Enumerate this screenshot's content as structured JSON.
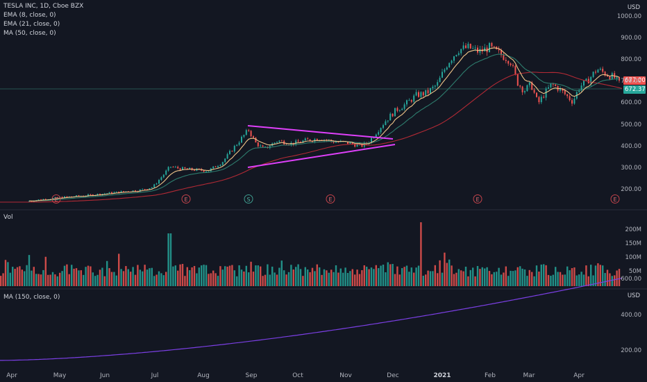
{
  "header": {
    "symbol_line": "TESLA INC, 1D, Cboe BZX",
    "indicators": [
      "EMA (8, close, 0)",
      "EMA (21, close, 0)",
      "MA (50, close, 0)"
    ]
  },
  "volume_pane": {
    "title": "Vol"
  },
  "ma_pane": {
    "title": "MA (150, close, 0)"
  },
  "currency": "USD",
  "price_tags": {
    "last": "677.00",
    "ema": "672.37"
  },
  "colors": {
    "background": "#131722",
    "up": "#26a69a",
    "down": "#ef5350",
    "ema8": "#f2c68a",
    "ema21": "#2e7d6e",
    "ma50": "#b32a35",
    "ma150": "#7b3fe4",
    "trendline": "#e040fb"
  },
  "events": [
    {
      "label": "E",
      "kind": "earnings"
    },
    {
      "label": "E",
      "kind": "earnings"
    },
    {
      "label": "S",
      "kind": "split"
    },
    {
      "label": "E",
      "kind": "earnings"
    },
    {
      "label": "E",
      "kind": "earnings"
    },
    {
      "label": "E",
      "kind": "earnings"
    }
  ],
  "chart_data": {
    "type": "candlestick",
    "price_axis": {
      "ticks": [
        "1000.00",
        "900.00",
        "800.00",
        "700.00",
        "600.00",
        "500.00",
        "400.00",
        "300.00",
        "200.00"
      ]
    },
    "volume_axis": {
      "ticks": [
        "200M",
        "150M",
        "100M",
        "50M"
      ]
    },
    "ma_axis": {
      "ticks": [
        "600.00",
        "400.00",
        "200.00"
      ]
    },
    "x_ticks": [
      "Apr",
      "May",
      "Jun",
      "Jul",
      "Aug",
      "Sep",
      "Oct",
      "Nov",
      "Dec",
      "2021",
      "Feb",
      "Mar",
      "Apr"
    ],
    "price_path": [
      [
        0,
        150
      ],
      [
        40,
        150
      ],
      [
        60,
        158
      ],
      [
        90,
        168
      ],
      [
        120,
        175
      ],
      [
        150,
        185
      ],
      [
        180,
        195
      ],
      [
        200,
        200
      ],
      [
        220,
        215
      ],
      [
        235,
        270
      ],
      [
        245,
        310
      ],
      [
        260,
        300
      ],
      [
        280,
        295
      ],
      [
        300,
        290
      ],
      [
        320,
        330
      ],
      [
        340,
        410
      ],
      [
        358,
        480
      ],
      [
        368,
        420
      ],
      [
        380,
        390
      ],
      [
        400,
        430
      ],
      [
        420,
        415
      ],
      [
        440,
        430
      ],
      [
        460,
        440
      ],
      [
        480,
        425
      ],
      [
        500,
        420
      ],
      [
        520,
        405
      ],
      [
        530,
        420
      ],
      [
        540,
        460
      ],
      [
        555,
        520
      ],
      [
        570,
        570
      ],
      [
        585,
        600
      ],
      [
        600,
        640
      ],
      [
        615,
        650
      ],
      [
        630,
        690
      ],
      [
        645,
        790
      ],
      [
        660,
        850
      ],
      [
        675,
        860
      ],
      [
        690,
        840
      ],
      [
        705,
        860
      ],
      [
        720,
        830
      ],
      [
        735,
        800
      ],
      [
        745,
        700
      ],
      [
        755,
        660
      ],
      [
        765,
        690
      ],
      [
        775,
        600
      ],
      [
        785,
        650
      ],
      [
        795,
        690
      ],
      [
        805,
        670
      ],
      [
        815,
        640
      ],
      [
        825,
        610
      ],
      [
        835,
        680
      ],
      [
        845,
        700
      ],
      [
        860,
        760
      ],
      [
        875,
        735
      ],
      [
        885,
        720
      ],
      [
        896,
        677
      ]
    ],
    "trendlines": [
      {
        "from": [
          "Sep",
          502
        ],
        "to": [
          "Dec",
          443
        ]
      },
      {
        "from": [
          "Sep",
          311
        ],
        "to": [
          "Dec",
          420
        ]
      }
    ],
    "last_price": 677.0,
    "ema_value": 672.37,
    "volume_spikes": [
      [
        "Jul",
        190
      ],
      [
        "Nov-end",
        230
      ]
    ],
    "volume_range": [
      0,
      230
    ],
    "ma150_range": [
      150,
      610
    ]
  }
}
